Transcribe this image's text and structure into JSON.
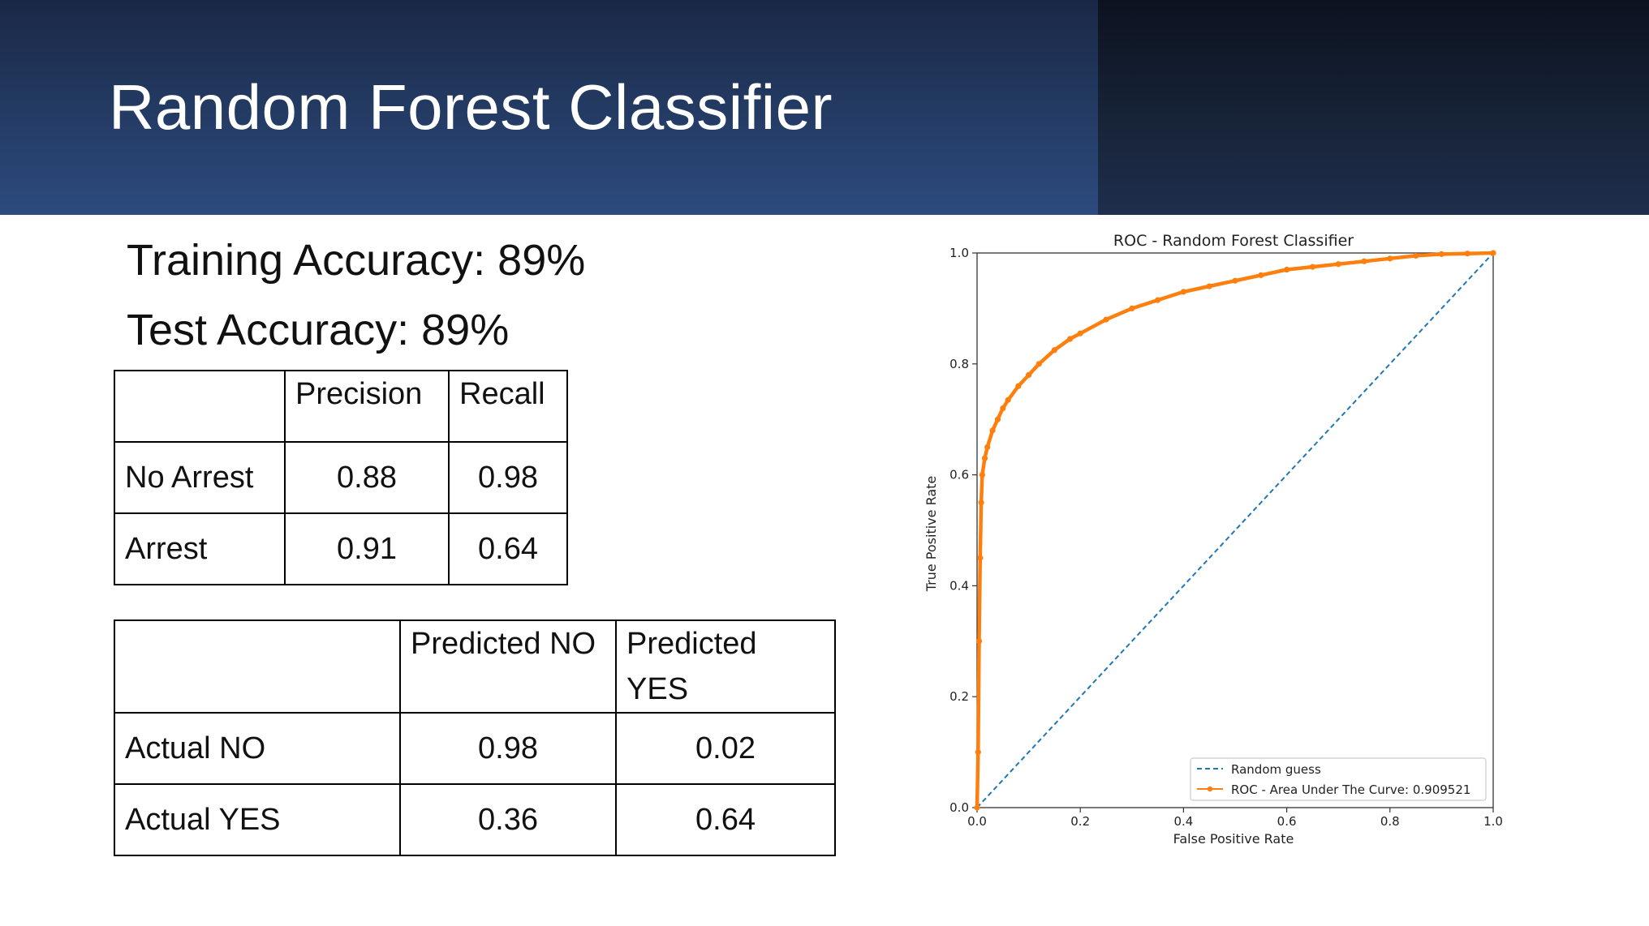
{
  "slide": {
    "title": "Random Forest Classifier"
  },
  "accuracy": {
    "training": "Training Accuracy: 89%",
    "test": "Test Accuracy: 89%"
  },
  "metrics_table": {
    "headers": [
      "",
      "Precision",
      "Recall"
    ],
    "rows": [
      {
        "label": "No Arrest",
        "precision": "0.88",
        "recall": "0.98"
      },
      {
        "label": "Arrest",
        "precision": "0.91",
        "recall": "0.64"
      }
    ]
  },
  "confusion_table": {
    "headers": [
      "",
      "Predicted NO",
      "Predicted YES"
    ],
    "rows": [
      {
        "label": "Actual NO",
        "predicted_no": "0.98",
        "predicted_yes": "0.02"
      },
      {
        "label": "Actual YES",
        "predicted_no": "0.36",
        "predicted_yes": "0.64"
      }
    ]
  },
  "colors": {
    "header_blue": "#2d4b7f",
    "roc_line": "#ff7f0e",
    "random_line": "#1f77b4"
  },
  "chart_data": {
    "type": "line",
    "title": "ROC - Random Forest Classifier",
    "xlabel": "False Positive Rate",
    "ylabel": "True Positive Rate",
    "xlim": [
      0,
      1
    ],
    "ylim": [
      0,
      1
    ],
    "xticks": [
      "0.0",
      "0.2",
      "0.4",
      "0.6",
      "0.8",
      "1.0"
    ],
    "yticks": [
      "0.0",
      "0.2",
      "0.4",
      "0.6",
      "0.8",
      "1.0"
    ],
    "grid": false,
    "legend_position": "bottom-right",
    "series": [
      {
        "name": "Random guess",
        "style": "dashed",
        "x": [
          0,
          1
        ],
        "y": [
          0,
          1
        ]
      },
      {
        "name": "ROC - Area Under The Curve: 0.909521",
        "style": "solid-markers",
        "x": [
          0,
          0.002,
          0.004,
          0.006,
          0.008,
          0.01,
          0.015,
          0.02,
          0.03,
          0.04,
          0.05,
          0.06,
          0.08,
          0.1,
          0.12,
          0.15,
          0.18,
          0.2,
          0.25,
          0.3,
          0.35,
          0.4,
          0.45,
          0.5,
          0.55,
          0.6,
          0.65,
          0.7,
          0.75,
          0.8,
          0.85,
          0.9,
          0.95,
          1.0
        ],
        "y": [
          0,
          0.1,
          0.3,
          0.45,
          0.55,
          0.6,
          0.63,
          0.65,
          0.68,
          0.7,
          0.72,
          0.735,
          0.76,
          0.78,
          0.8,
          0.825,
          0.845,
          0.855,
          0.88,
          0.9,
          0.915,
          0.93,
          0.94,
          0.95,
          0.96,
          0.97,
          0.975,
          0.98,
          0.985,
          0.99,
          0.995,
          0.998,
          0.999,
          1.0
        ]
      }
    ]
  }
}
